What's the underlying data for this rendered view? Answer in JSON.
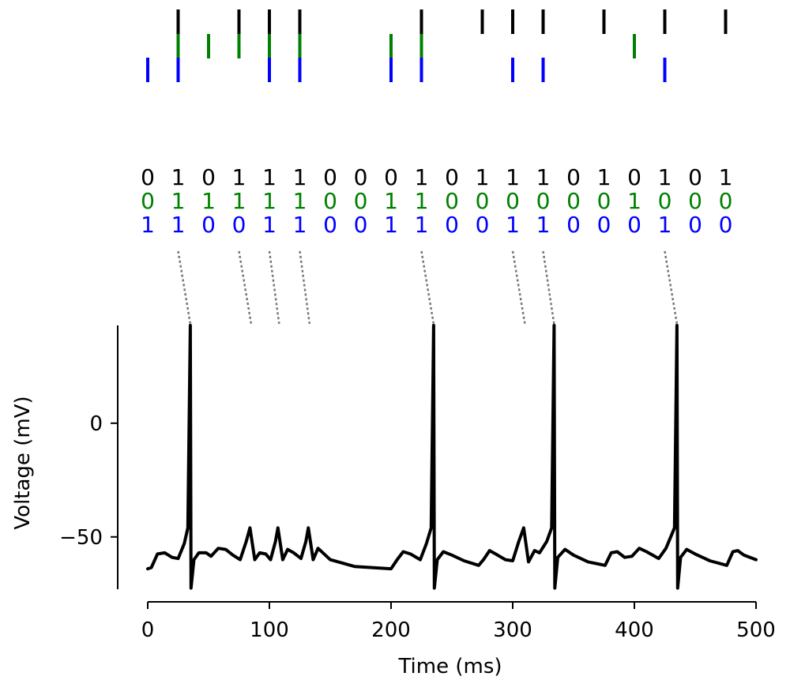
{
  "chart_data": {
    "type": "line",
    "xlabel": "Time (ms)",
    "ylabel": "Voltage (mV)",
    "xlim": [
      0,
      500
    ],
    "ylim": [
      -73,
      43
    ],
    "x_ticks": [
      0,
      100,
      200,
      300,
      400,
      500
    ],
    "x_tick_labels": [
      "0",
      "100",
      "200",
      "300",
      "400",
      "500"
    ],
    "y_ticks": [
      0,
      -50
    ],
    "y_tick_labels": [
      "0",
      "−50"
    ],
    "grid": false,
    "legend": "none",
    "trace": {
      "color": "#000000",
      "rest_mV": -64,
      "spike_peak_mV": 43,
      "spike_trough_mV": -72.5,
      "spike_times_ms": [
        35,
        85,
        108,
        133,
        235,
        310,
        334,
        435
      ],
      "subthreshold_points": [
        [
          0,
          -64
        ],
        [
          3,
          -63.5
        ],
        [
          8,
          -57.5
        ],
        [
          14,
          -57
        ],
        [
          20,
          -59
        ],
        [
          25,
          -59.5
        ],
        [
          30,
          -53
        ],
        [
          33,
          -46
        ],
        [
          38,
          -60
        ],
        [
          42,
          -57
        ],
        [
          48,
          -57
        ],
        [
          52,
          -58.5
        ],
        [
          58,
          -55
        ],
        [
          64,
          -55.5
        ],
        [
          70,
          -58
        ],
        [
          76,
          -60
        ],
        [
          81,
          -52
        ],
        [
          84,
          -46
        ],
        [
          88,
          -60
        ],
        [
          92,
          -57
        ],
        [
          97,
          -57.5
        ],
        [
          101,
          -60
        ],
        [
          105,
          -52
        ],
        [
          107,
          -46
        ],
        [
          111,
          -60
        ],
        [
          115,
          -55.5
        ],
        [
          120,
          -57
        ],
        [
          126,
          -59.5
        ],
        [
          130,
          -52
        ],
        [
          132,
          -46
        ],
        [
          136,
          -60
        ],
        [
          140,
          -55
        ],
        [
          150,
          -60
        ],
        [
          170,
          -63
        ],
        [
          200,
          -64
        ],
        [
          205,
          -60
        ],
        [
          210,
          -56.5
        ],
        [
          216,
          -57.5
        ],
        [
          224,
          -60
        ],
        [
          229,
          -53
        ],
        [
          233,
          -46
        ],
        [
          238,
          -60
        ],
        [
          243,
          -56.5
        ],
        [
          250,
          -58
        ],
        [
          260,
          -60.5
        ],
        [
          272,
          -62.5
        ],
        [
          276,
          -60
        ],
        [
          281,
          -56
        ],
        [
          286,
          -57.5
        ],
        [
          294,
          -60
        ],
        [
          300,
          -60.5
        ],
        [
          305,
          -52
        ],
        [
          309,
          -46
        ],
        [
          313,
          -61
        ],
        [
          318,
          -56
        ],
        [
          322,
          -57
        ],
        [
          328,
          -52
        ],
        [
          332,
          -46
        ],
        [
          337,
          -59
        ],
        [
          343,
          -55.5
        ],
        [
          350,
          -58
        ],
        [
          362,
          -61
        ],
        [
          376,
          -62.5
        ],
        [
          381,
          -57
        ],
        [
          386,
          -56.5
        ],
        [
          392,
          -59
        ],
        [
          398,
          -58.5
        ],
        [
          404,
          -55
        ],
        [
          410,
          -56.5
        ],
        [
          420,
          -59.5
        ],
        [
          426,
          -55
        ],
        [
          433,
          -46
        ],
        [
          438,
          -59
        ],
        [
          443,
          -55.5
        ],
        [
          450,
          -57.5
        ],
        [
          462,
          -60.5
        ],
        [
          476,
          -62.5
        ],
        [
          481,
          -56.5
        ],
        [
          485,
          -56
        ],
        [
          490,
          -58
        ],
        [
          500,
          -60
        ]
      ]
    },
    "raster": {
      "rows": [
        {
          "color": "#000000",
          "times_ms": [
            25,
            75,
            100,
            125,
            225,
            275,
            300,
            325,
            375,
            425,
            475
          ]
        },
        {
          "color": "#008000",
          "times_ms": [
            25,
            50,
            75,
            100,
            125,
            200,
            225,
            400
          ]
        },
        {
          "color": "#0000ff",
          "times_ms": [
            0,
            25,
            100,
            125,
            200,
            225,
            300,
            325,
            425
          ]
        }
      ]
    },
    "binary_code": {
      "rows": [
        {
          "color": "#000000",
          "bits": [
            "0",
            "1",
            "0",
            "1",
            "1",
            "1",
            "0",
            "0",
            "0",
            "1",
            "0",
            "1",
            "1",
            "1",
            "0",
            "1",
            "0",
            "1",
            "0",
            "1"
          ]
        },
        {
          "color": "#008000",
          "bits": [
            "0",
            "1",
            "1",
            "1",
            "1",
            "1",
            "0",
            "0",
            "1",
            "1",
            "0",
            "0",
            "0",
            "0",
            "0",
            "0",
            "1",
            "0",
            "0",
            "0"
          ]
        },
        {
          "color": "#0000ff",
          "bits": [
            "1",
            "1",
            "0",
            "0",
            "1",
            "1",
            "0",
            "0",
            "1",
            "1",
            "0",
            "0",
            "1",
            "1",
            "0",
            "0",
            "0",
            "1",
            "0",
            "0"
          ]
        }
      ]
    },
    "connectors": {
      "color": "#777777",
      "from_ms": [
        25,
        75,
        100,
        125,
        225,
        300,
        325,
        425
      ],
      "to_spike_ms": [
        35,
        85,
        108,
        133,
        235,
        310,
        334,
        435
      ]
    }
  }
}
